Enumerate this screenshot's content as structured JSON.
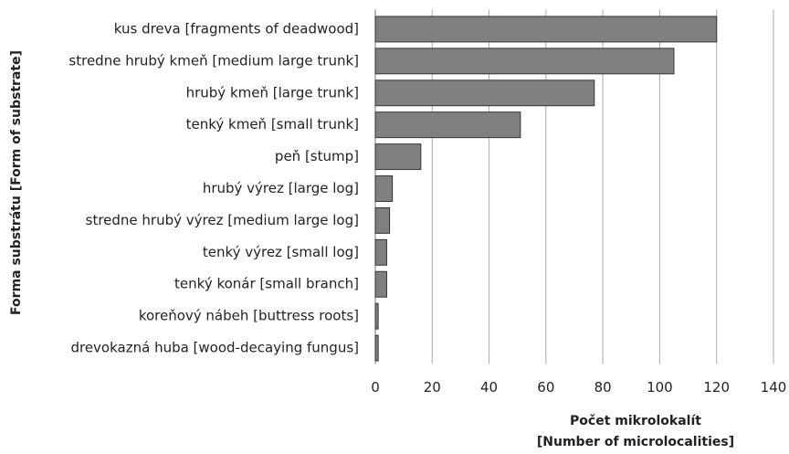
{
  "chart_data": {
    "type": "bar",
    "orientation": "horizontal",
    "categories": [
      "kus dreva [fragments of deadwood]",
      "stredne hrubý kmeň [medium large trunk]",
      "hrubý kmeň [large trunk]",
      "tenký kmeň [small trunk]",
      "peň [stump]",
      "hrubý výrez [large log]",
      "stredne hrubý výrez [medium large log]",
      "tenký výrez [small log]",
      "tenký konár [small branch]",
      "koreňový nábeh [buttress roots]",
      "drevokazná huba [wood-decaying fungus]"
    ],
    "values": [
      120,
      105,
      77,
      51,
      16,
      6,
      5,
      4,
      4,
      1,
      1
    ],
    "color": "#808080",
    "xlim": [
      0,
      140
    ],
    "xticks": [
      0,
      20,
      40,
      60,
      80,
      100,
      120,
      140
    ],
    "grid": true,
    "xlabel": [
      "Počet mikrolokalít",
      "[Number of microlocalities]"
    ],
    "ylabel": "Forma substrátu  [Form of substrate]"
  }
}
